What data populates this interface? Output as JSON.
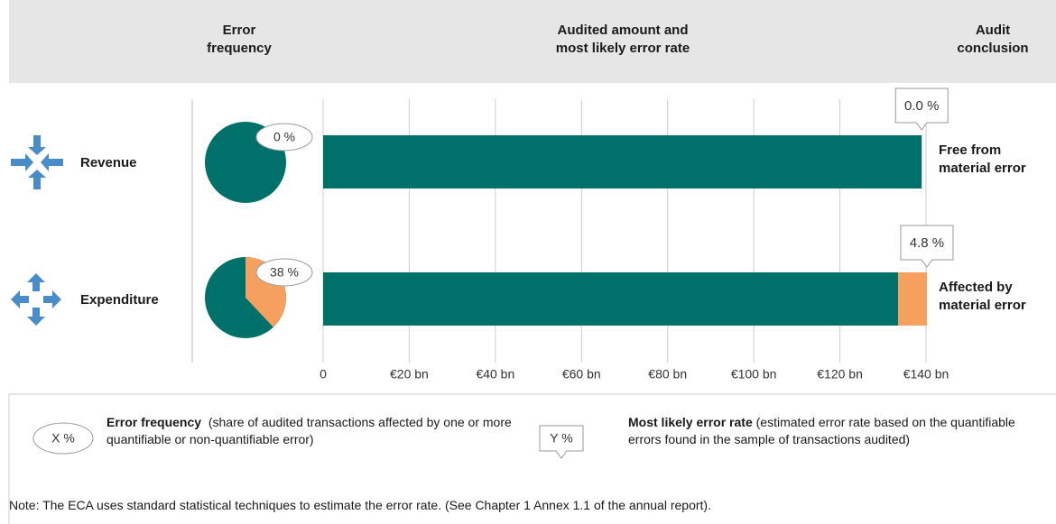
{
  "headers": {
    "frequency": "Error frequency",
    "amount": "Audited amount and most likely error rate",
    "conclusion": "Audit conclusion"
  },
  "chart_data": {
    "type": "bar",
    "orientation": "horizontal",
    "stacked": true,
    "categories": [
      "Revenue",
      "Expenditure"
    ],
    "series": [
      {
        "color": "#00706b",
        "values": [
          139,
          133.5
        ]
      },
      {
        "color": "#f5a05e",
        "values": [
          0,
          6.7
        ]
      }
    ],
    "error_rates": [
      0.0,
      4.8
    ],
    "error_rate_labels": [
      "0.0 %",
      "4.8 %"
    ],
    "error_frequency": [
      0,
      38
    ],
    "error_frequency_labels": [
      "0 %",
      "38 %"
    ],
    "conclusions": [
      "Free from material error",
      "Affected by material error"
    ],
    "xlim": [
      0,
      140
    ],
    "xticks": [
      0,
      {
        "value": 20,
        "label": "€20 bn"
      },
      {
        "value": 40,
        "label": "€40 bn"
      },
      {
        "value": 60,
        "label": "€60 bn"
      },
      {
        "value": 80,
        "label": "€80 bn"
      },
      {
        "value": 100,
        "label": "€100 bn"
      },
      {
        "value": 120,
        "label": "€120 bn"
      },
      {
        "value": 140,
        "label": "€140 bn"
      }
    ],
    "grid": true
  },
  "legend": {
    "frequency_symbol": "X %",
    "frequency_term": "Error frequency",
    "frequency_text": "(share of audited transactions affected by one or more quantifiable or non-quantifiable error)",
    "rate_symbol": "Y %",
    "rate_term": "Most likely error rate",
    "rate_text": "(estimated error rate based on the quantifiable errors found in the sample of transactions audited)"
  },
  "note": "Note: The ECA uses standard statistical techniques to estimate the error rate. (See Chapter 1 Annex 1.1 of the annual report)."
}
